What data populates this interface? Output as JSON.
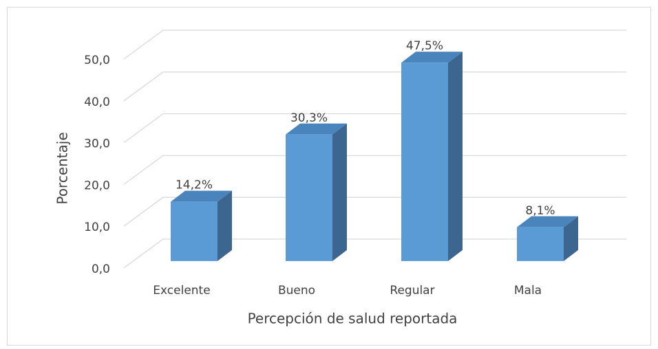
{
  "chart_data": {
    "type": "bar3d",
    "x_label": "Percepción de salud reportada",
    "y_label": "Porcentaje",
    "categories": [
      "Excelente",
      "Bueno",
      "Regular",
      "Mala"
    ],
    "values": [
      14.2,
      30.3,
      47.5,
      8.1
    ],
    "value_labels": [
      "14,2%",
      "30,3%",
      "47,5%",
      "8,1%"
    ],
    "color": "#5b9bd5",
    "ylim": [
      0,
      50
    ],
    "yticks": [
      {
        "value": 0,
        "label": "0,0"
      },
      {
        "value": 10,
        "label": "10,0"
      },
      {
        "value": 20,
        "label": "20,0"
      },
      {
        "value": 30,
        "label": "30,0"
      },
      {
        "value": 40,
        "label": "40,0"
      },
      {
        "value": 50,
        "label": "50,0"
      }
    ],
    "grid": true
  }
}
